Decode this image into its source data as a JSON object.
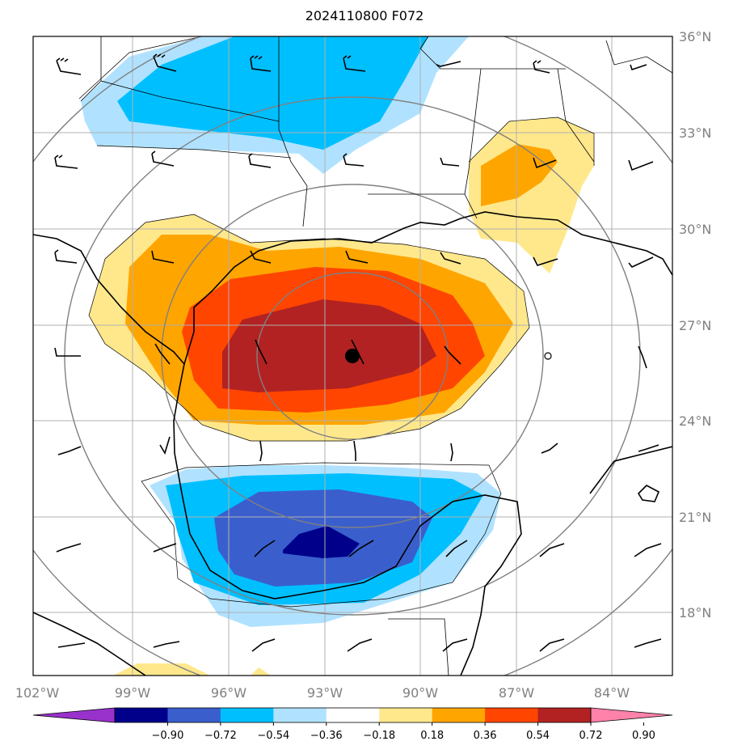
{
  "title": "2024110800 F072",
  "lon_labels": [
    "102°W",
    "99°W",
    "96°W",
    "93°W",
    "90°W",
    "87°W",
    "84°W"
  ],
  "lat_labels": [
    "36°N",
    "33°N",
    "30°N",
    "27°N",
    "24°N",
    "21°N",
    "18°N"
  ],
  "colorbar": {
    "ticks": [
      "−0.90",
      "−0.72",
      "−0.54",
      "−0.36",
      "−0.18",
      "0.18",
      "0.36",
      "0.54",
      "0.72",
      "0.90"
    ],
    "colors": [
      "#9932cc",
      "#00008b",
      "#3a5fcd",
      "#00bfff",
      "#b0e2ff",
      "#ffffff",
      "#ffe88c",
      "#ffa500",
      "#ff4500",
      "#b22222",
      "#ff82ab"
    ]
  },
  "storm_center": {
    "lon": -92.4,
    "lat": 26.0
  }
}
